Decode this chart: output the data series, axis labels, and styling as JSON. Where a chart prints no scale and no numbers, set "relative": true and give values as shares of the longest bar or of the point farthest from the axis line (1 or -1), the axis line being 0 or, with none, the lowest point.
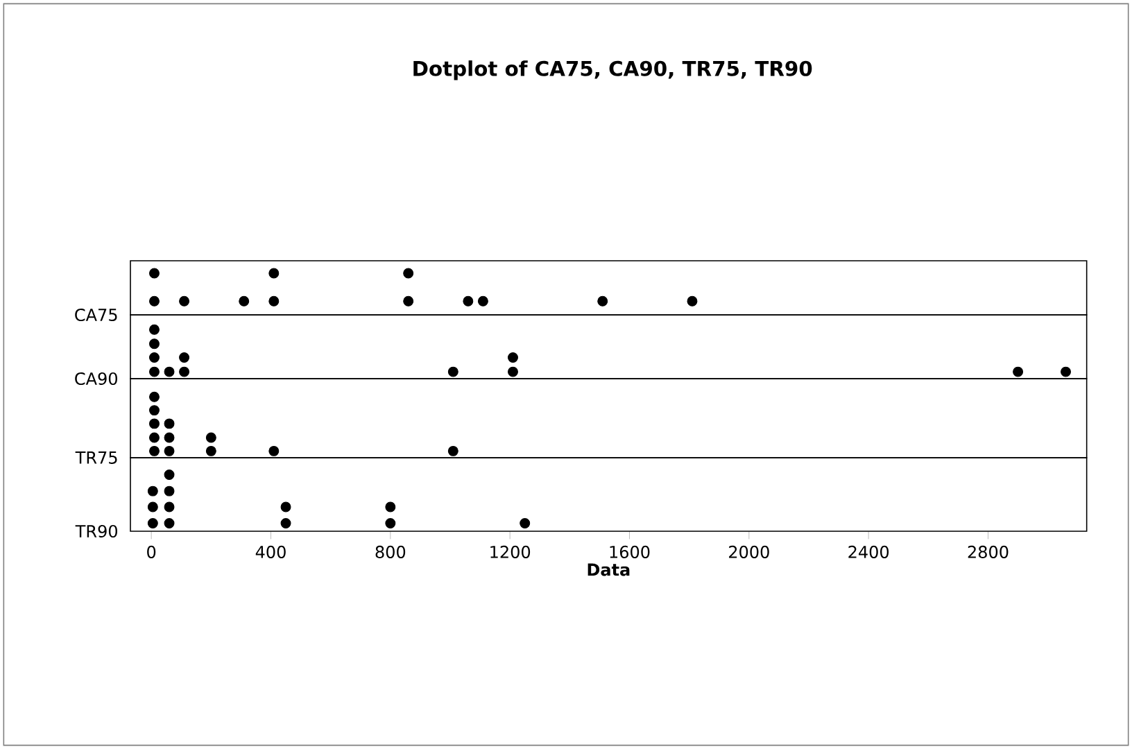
{
  "chart_data": [
    {
      "type": "scatter",
      "title": "Dotplot of CA75, CA90, TR75, TR90",
      "ylabel": "CA75",
      "xlim": [
        -70,
        3130
      ],
      "xticks": [
        0,
        400,
        800,
        1200,
        1600,
        2000,
        2400,
        2800
      ],
      "tick_labels": false,
      "relative": true,
      "series": [
        {
          "color": "#000000",
          "x": [
            10,
            10,
            110,
            310,
            410,
            410,
            860,
            860,
            1060,
            1110,
            1510,
            1810
          ],
          "values": [
            0.33,
            1,
            0.33,
            0.33,
            0.33,
            1,
            0.33,
            1,
            0.33,
            0.33,
            0.33,
            0.33
          ]
        }
      ]
    },
    {
      "type": "scatter",
      "ylabel": "CA90",
      "xlim": [
        -70,
        3130
      ],
      "xticks": [
        0,
        400,
        800,
        1200,
        1600,
        2000,
        2400,
        2800
      ],
      "tick_labels": false,
      "relative": true,
      "series": [
        {
          "color": "#000000",
          "x": [
            10,
            10,
            10,
            10,
            60,
            110,
            110,
            1010,
            1210,
            1210,
            2900,
            3060
          ],
          "values": [
            0.14,
            0.43,
            0.71,
            1,
            0.14,
            0.14,
            0.43,
            0.14,
            0.14,
            0.43,
            0.14,
            0.14
          ]
        }
      ]
    },
    {
      "type": "scatter",
      "ylabel": "TR75",
      "xlim": [
        -70,
        3130
      ],
      "xticks": [
        0,
        400,
        800,
        1200,
        1600,
        2000,
        2400,
        2800
      ],
      "tick_labels": false,
      "relative": true,
      "series": [
        {
          "color": "#000000",
          "x": [
            10,
            10,
            10,
            10,
            10,
            60,
            60,
            60,
            200,
            200,
            410,
            1010
          ],
          "values": [
            0.11,
            0.33,
            0.56,
            0.78,
            1,
            0.11,
            0.33,
            0.56,
            0.11,
            0.33,
            0.11,
            0.11
          ]
        }
      ]
    },
    {
      "type": "scatter",
      "ylabel": "TR90",
      "xlabel": "Data",
      "xlim": [
        -70,
        3130
      ],
      "xticks": [
        0,
        400,
        800,
        1200,
        1600,
        2000,
        2400,
        2800
      ],
      "tick_labels": "x",
      "relative": true,
      "series": [
        {
          "color": "#000000",
          "x": [
            5,
            5,
            5,
            60,
            60,
            60,
            60,
            450,
            450,
            800,
            800,
            1250
          ],
          "values": [
            0.14,
            0.43,
            0.71,
            0.14,
            0.43,
            0.71,
            1,
            0.14,
            0.43,
            0.14,
            0.43,
            0.14
          ]
        }
      ]
    }
  ]
}
